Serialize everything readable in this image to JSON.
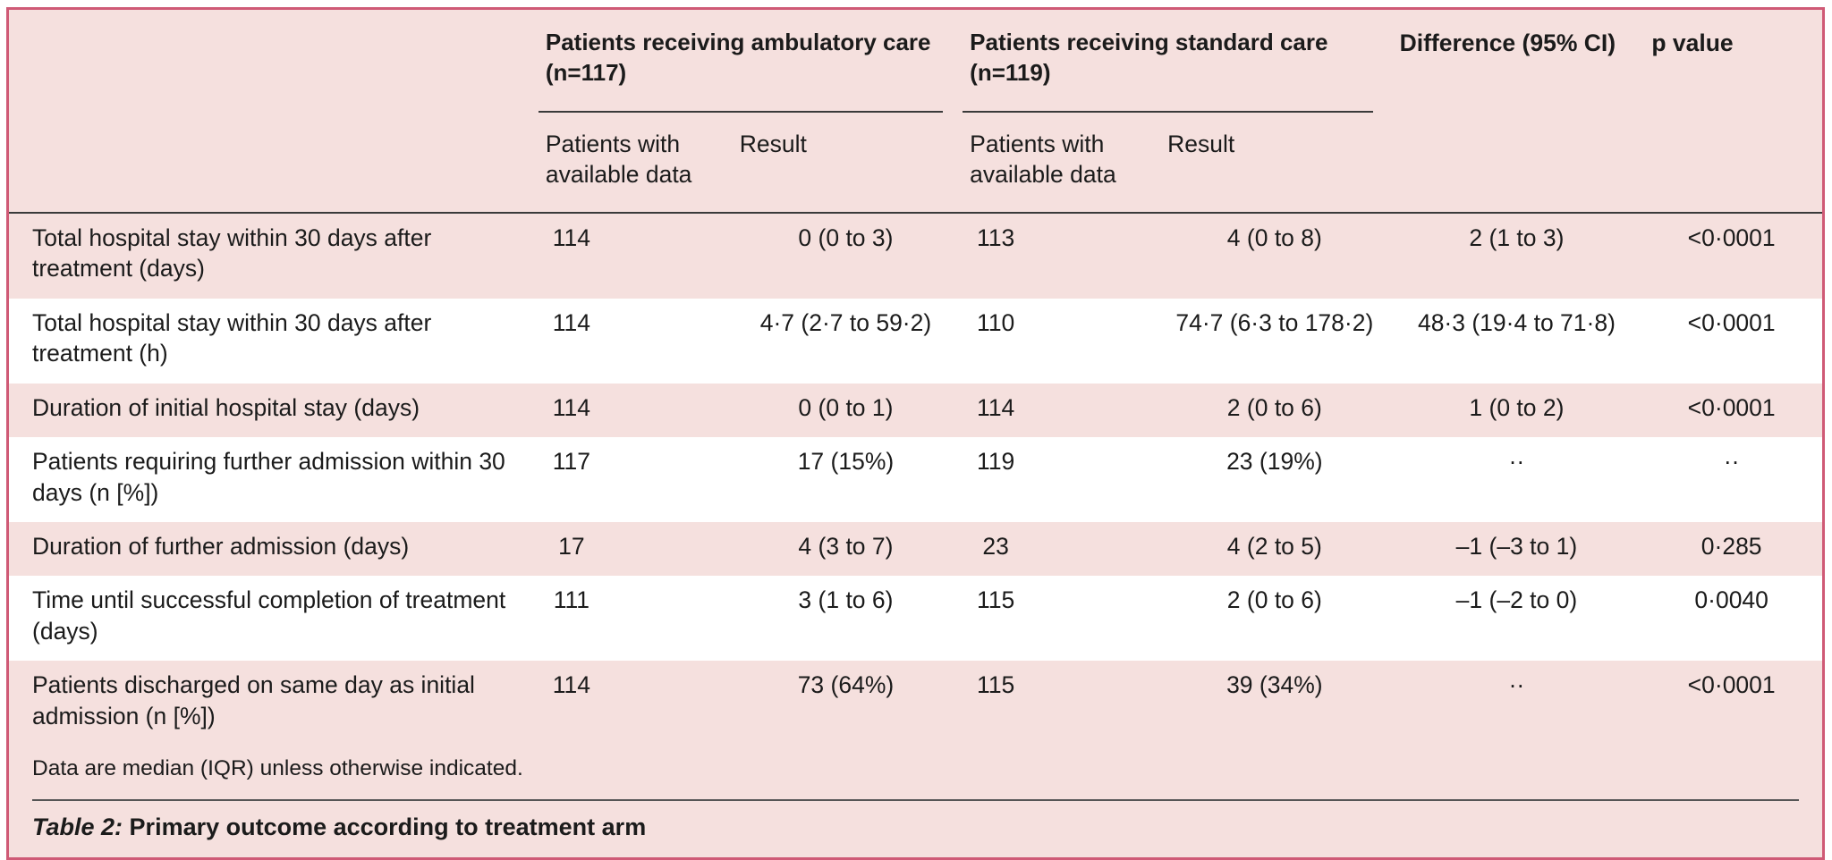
{
  "table": {
    "colors": {
      "card_fill": "#f5e0de",
      "stripe": "#ffffff",
      "card_border": "#cf5a76",
      "rule": "#3a3a3a",
      "text": "#1b1b1b"
    },
    "col_groups": {
      "ambulatory": {
        "label": "Patients receiving ambulatory care (n=117)"
      },
      "standard": {
        "label": "Patients receiving standard care (n=119)"
      },
      "difference": {
        "label": "Difference (95% CI)"
      },
      "pvalue": {
        "label": "p value"
      }
    },
    "sub_headers": {
      "amb_n": "Patients with available data",
      "amb_result": "Result",
      "std_n": "Patients with available data",
      "std_result": "Result"
    },
    "rows": [
      {
        "label": "Total hospital stay within 30 days after treatment (days)",
        "amb_n": "114",
        "amb_result": "0 (0 to 3)",
        "std_n": "113",
        "std_result": "4 (0 to 8)",
        "difference": "2 (1 to 3)",
        "p": "<0·0001"
      },
      {
        "label": "Total hospital stay within 30 days after treatment (h)",
        "amb_n": "114",
        "amb_result": "4·7 (2·7 to 59·2)",
        "std_n": "110",
        "std_result": "74·7 (6·3 to 178·2)",
        "difference": "48·3 (19·4 to 71·8)",
        "p": "<0·0001"
      },
      {
        "label": "Duration of initial hospital stay (days)",
        "amb_n": "114",
        "amb_result": "0 (0 to 1)",
        "std_n": "114",
        "std_result": "2 (0 to 6)",
        "difference": "1 (0 to 2)",
        "p": "<0·0001"
      },
      {
        "label": "Patients requiring further admission within 30 days (n [%])",
        "amb_n": "117",
        "amb_result": "17 (15%)",
        "std_n": "119",
        "std_result": "23 (19%)",
        "difference": "··",
        "p": "··"
      },
      {
        "label": "Duration of further admission (days)",
        "amb_n": "17",
        "amb_result": "4 (3 to 7)",
        "std_n": "23",
        "std_result": "4 (2 to 5)",
        "difference": "–1 (–3 to 1)",
        "p": "0·285"
      },
      {
        "label": "Time until successful completion of treatment (days)",
        "amb_n": "111",
        "amb_result": "3 (1 to 6)",
        "std_n": "115",
        "std_result": "2 (0 to 6)",
        "difference": "–1 (–2 to 0)",
        "p": "0·0040"
      },
      {
        "label": "Patients discharged on same day as initial admission (n [%])",
        "amb_n": "114",
        "amb_result": "73 (64%)",
        "std_n": "115",
        "std_result": "39 (34%)",
        "difference": "··",
        "p": "<0·0001"
      }
    ],
    "footnote": "Data are median (IQR) unless otherwise indicated.",
    "caption_prefix": "Table 2:",
    "caption_text": "Primary outcome according to treatment arm"
  }
}
